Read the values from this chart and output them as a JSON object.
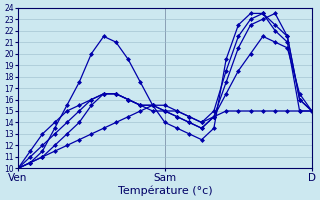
{
  "xlabel": "Température (°c)",
  "bg_color": "#cce8f0",
  "grid_color": "#9bbccc",
  "line_color": "#0000aa",
  "marker": "D",
  "markersize": 2.0,
  "linewidth": 0.9,
  "ylim": [
    10,
    24
  ],
  "ytick_min": 10,
  "ytick_max": 24,
  "xlim": [
    0,
    24
  ],
  "xtick_positions": [
    0,
    12,
    24
  ],
  "xtick_labels": [
    "Ven",
    "Sam",
    "D"
  ],
  "series": [
    [
      10.0,
      10.5,
      11.5,
      13.5,
      15.5,
      17.5,
      20.0,
      21.5,
      21.0,
      19.5,
      17.5,
      15.5,
      14.0,
      13.5,
      13.0,
      12.5,
      13.5,
      19.5,
      22.5,
      23.5,
      23.5,
      22.0,
      21.0,
      15.0,
      15.0
    ],
    [
      10.0,
      10.5,
      11.0,
      11.5,
      12.0,
      12.5,
      13.0,
      13.5,
      14.0,
      14.5,
      15.0,
      15.5,
      15.0,
      15.0,
      14.5,
      14.0,
      14.5,
      15.0,
      15.0,
      15.0,
      15.0,
      15.0,
      15.0,
      15.0,
      15.0
    ],
    [
      10.0,
      10.5,
      11.0,
      12.0,
      13.0,
      14.0,
      15.5,
      16.5,
      16.5,
      16.0,
      15.5,
      15.5,
      15.0,
      14.5,
      14.0,
      13.5,
      14.5,
      16.5,
      18.5,
      20.0,
      21.5,
      21.0,
      20.5,
      16.5,
      15.0
    ],
    [
      10.0,
      11.0,
      12.0,
      13.0,
      14.0,
      15.0,
      16.0,
      16.5,
      16.5,
      16.0,
      15.5,
      15.0,
      15.0,
      14.5,
      14.0,
      13.5,
      14.5,
      17.5,
      20.5,
      22.5,
      23.0,
      23.5,
      21.5,
      16.0,
      15.0
    ],
    [
      10.0,
      11.5,
      13.0,
      14.0,
      15.0,
      15.5,
      16.0,
      16.5,
      16.5,
      16.0,
      15.5,
      15.5,
      15.5,
      15.0,
      14.5,
      14.0,
      15.0,
      18.5,
      21.5,
      23.0,
      23.5,
      22.5,
      21.5,
      16.0,
      15.0
    ]
  ]
}
